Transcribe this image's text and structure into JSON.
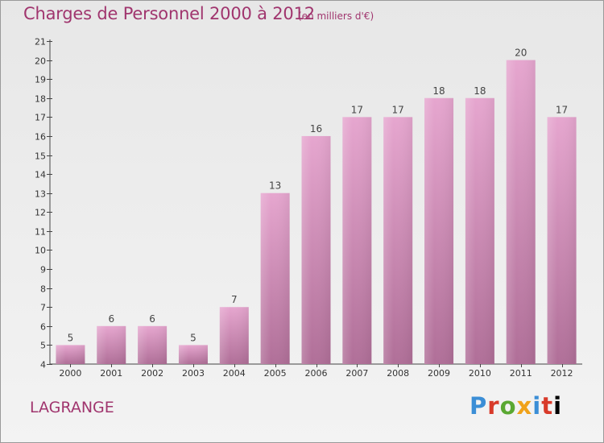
{
  "header": {
    "title": "Charges de Personnel 2000 à 2012",
    "subtitle": "(en milliers d'€)"
  },
  "footer": {
    "commune": "LAGRANGE",
    "logo_letters": [
      "P",
      "r",
      "o",
      "x",
      "i",
      "t",
      "i"
    ]
  },
  "colors": {
    "bar_top": "#e6a6cf",
    "bar_bottom": "#b06f98",
    "title": "#a0356e"
  },
  "chart_data": {
    "type": "bar",
    "title": "Charges de Personnel 2000 à 2012",
    "subtitle": "(en milliers d'€)",
    "categories": [
      "2000",
      "2001",
      "2002",
      "2003",
      "2004",
      "2005",
      "2006",
      "2007",
      "2008",
      "2009",
      "2010",
      "2011",
      "2012"
    ],
    "values": [
      5,
      6,
      6,
      5,
      7,
      13,
      16,
      17,
      17,
      18,
      18,
      20,
      17
    ],
    "ylim": [
      4,
      21
    ],
    "yticks": [
      4,
      5,
      6,
      7,
      8,
      9,
      10,
      11,
      12,
      13,
      14,
      15,
      16,
      17,
      18,
      19,
      20,
      21
    ],
    "grid": false,
    "data_labels": true
  }
}
